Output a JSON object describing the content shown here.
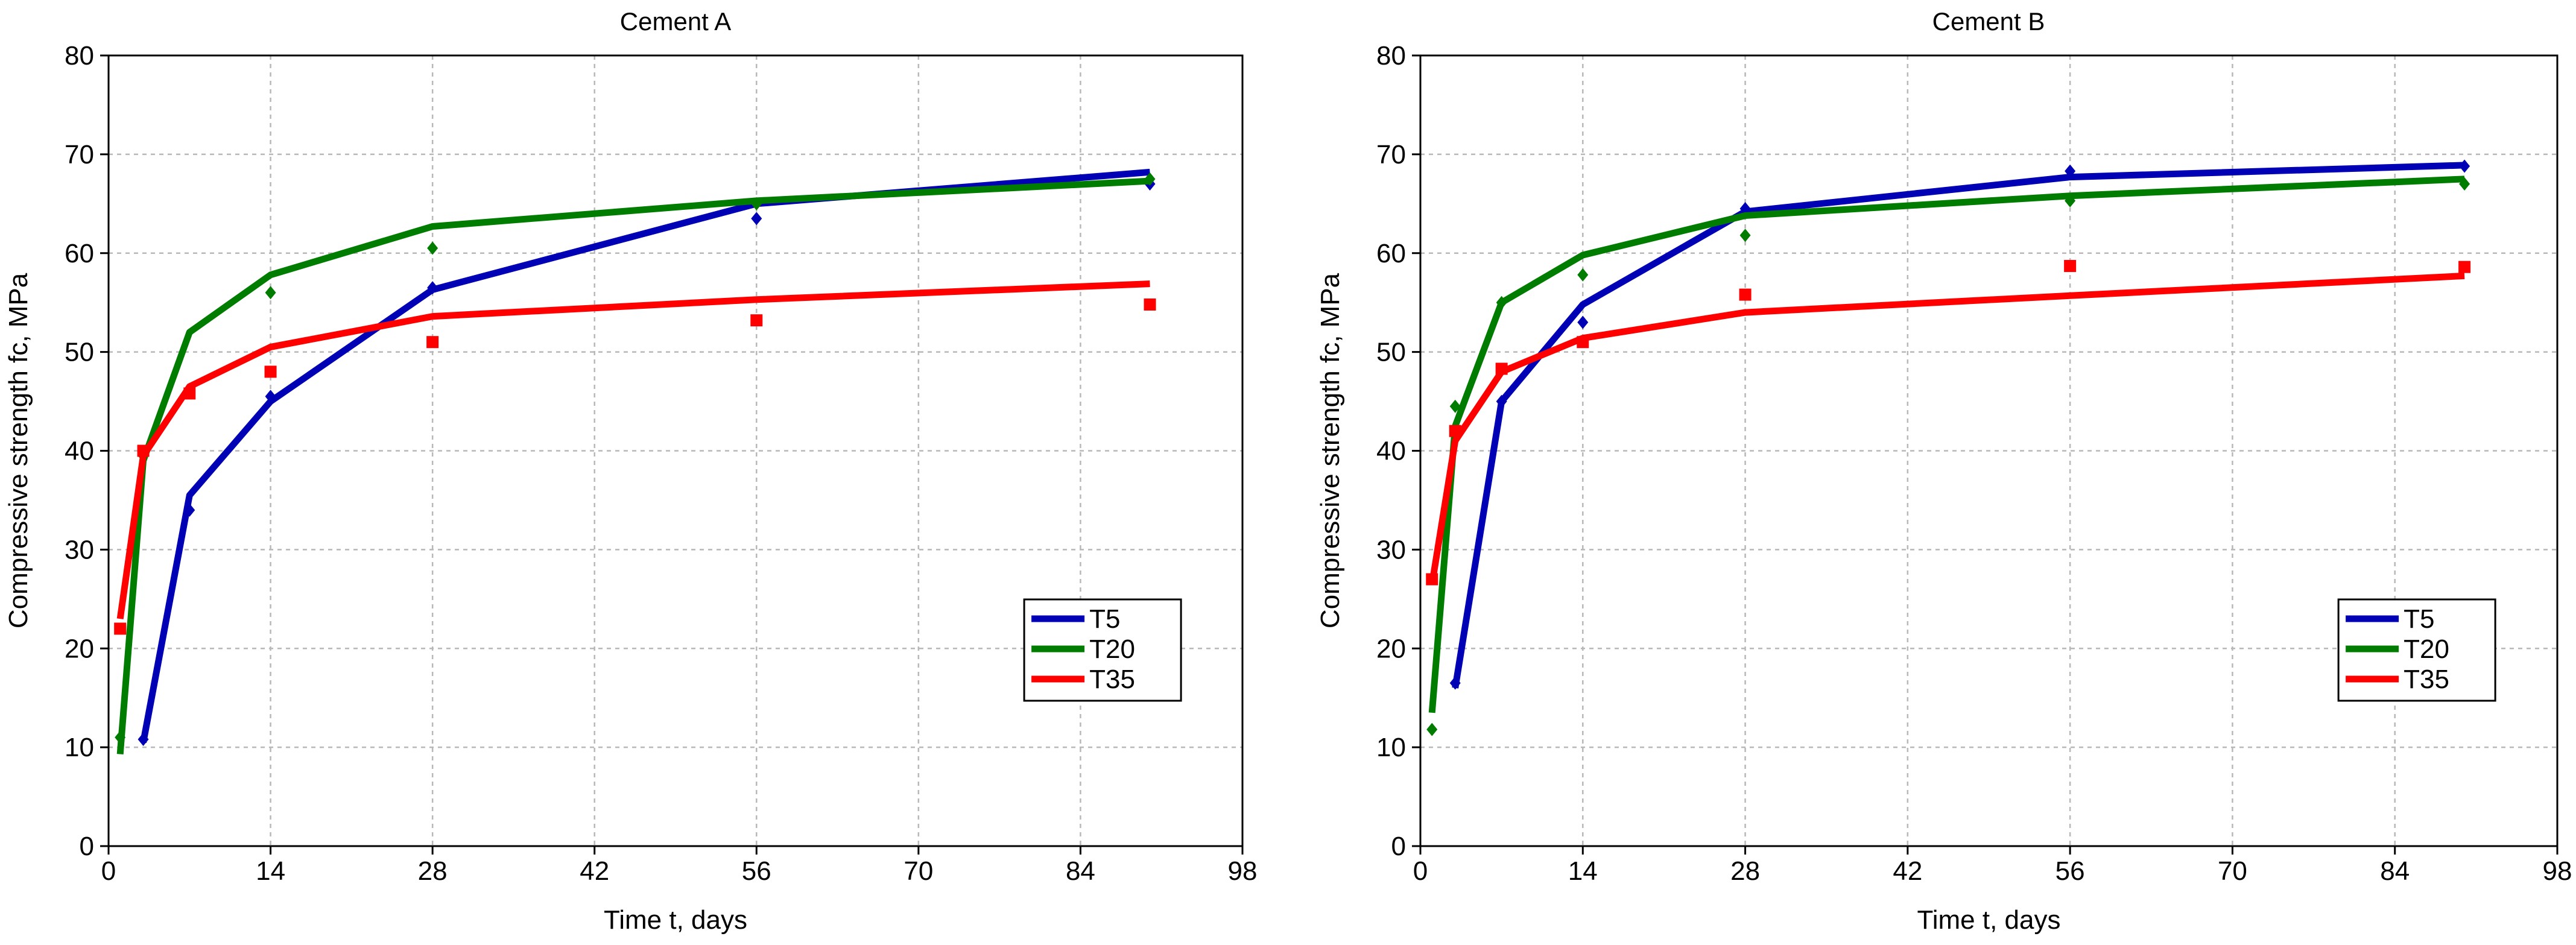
{
  "chart_data": [
    {
      "type": "line",
      "title": "Cement A",
      "xlabel": "Time t, days",
      "ylabel": "Compressive strength fc, MPa",
      "xlim": [
        0,
        98
      ],
      "ylim": [
        0,
        80
      ],
      "xticks": [
        0,
        14,
        28,
        42,
        56,
        70,
        84,
        98
      ],
      "yticks": [
        0,
        10,
        20,
        30,
        40,
        50,
        60,
        70,
        80
      ],
      "grid": true,
      "legend_position": "bottom-right",
      "series": [
        {
          "name": "T5",
          "color": "#0000b4",
          "marker": "diamond",
          "points_x": [
            3,
            7,
            14,
            28,
            56,
            90
          ],
          "points_y": [
            10.8,
            34,
            45.5,
            56.5,
            63.5,
            67
          ],
          "fit_x": [
            3,
            7,
            14,
            28,
            56,
            90
          ],
          "fit_y": [
            10.5,
            35.5,
            45,
            56.3,
            65,
            68.2
          ]
        },
        {
          "name": "T20",
          "color": "#007d00",
          "marker": "diamond",
          "points_x": [
            1,
            3,
            7,
            14,
            28,
            56,
            90
          ],
          "points_y": [
            11,
            39.5,
            46,
            56,
            60.5,
            65,
            67.5
          ],
          "fit_x": [
            1,
            3,
            7,
            14,
            28,
            56,
            90
          ],
          "fit_y": [
            9.3,
            39,
            52,
            57.8,
            62.7,
            65.3,
            67.3
          ]
        },
        {
          "name": "T35",
          "color": "#ff0000",
          "marker": "square",
          "points_x": [
            1,
            3,
            7,
            14,
            28,
            56,
            90
          ],
          "points_y": [
            22,
            40,
            45.8,
            48,
            51,
            53.2,
            54.8
          ],
          "fit_x": [
            1,
            3,
            7,
            14,
            28,
            56,
            90
          ],
          "fit_y": [
            23,
            39.5,
            46.5,
            50.5,
            53.6,
            55.3,
            56.9
          ]
        }
      ]
    },
    {
      "type": "line",
      "title": "Cement B",
      "xlabel": "Time t, days",
      "ylabel": "Compressive strength fc, MPa",
      "xlim": [
        0,
        98
      ],
      "ylim": [
        0,
        80
      ],
      "xticks": [
        0,
        14,
        28,
        42,
        56,
        70,
        84,
        98
      ],
      "yticks": [
        0,
        10,
        20,
        30,
        40,
        50,
        60,
        70,
        80
      ],
      "grid": true,
      "legend_position": "bottom-right",
      "series": [
        {
          "name": "T5",
          "color": "#0000b4",
          "marker": "diamond",
          "points_x": [
            3,
            7,
            14,
            28,
            56,
            90
          ],
          "points_y": [
            16.5,
            45,
            53,
            64.5,
            68.3,
            68.8
          ],
          "fit_x": [
            3,
            7,
            14,
            28,
            56,
            90
          ],
          "fit_y": [
            16,
            45,
            54.8,
            64.2,
            67.7,
            68.9
          ]
        },
        {
          "name": "T20",
          "color": "#007d00",
          "marker": "diamond",
          "points_x": [
            1,
            3,
            7,
            14,
            28,
            56,
            90
          ],
          "points_y": [
            11.8,
            44.5,
            55,
            57.8,
            61.8,
            65.3,
            67
          ],
          "fit_x": [
            1,
            3,
            7,
            14,
            28,
            56,
            90
          ],
          "fit_y": [
            13.5,
            42.5,
            55,
            59.8,
            63.8,
            65.8,
            67.5
          ]
        },
        {
          "name": "T35",
          "color": "#ff0000",
          "marker": "square",
          "points_x": [
            1,
            3,
            7,
            14,
            28,
            56,
            90
          ],
          "points_y": [
            27,
            42,
            48.3,
            51,
            55.8,
            58.7,
            58.6
          ],
          "fit_x": [
            1,
            3,
            7,
            14,
            28,
            56,
            90
          ],
          "fit_y": [
            26.5,
            41,
            48,
            51.4,
            54,
            55.7,
            57.7
          ]
        }
      ]
    }
  ]
}
